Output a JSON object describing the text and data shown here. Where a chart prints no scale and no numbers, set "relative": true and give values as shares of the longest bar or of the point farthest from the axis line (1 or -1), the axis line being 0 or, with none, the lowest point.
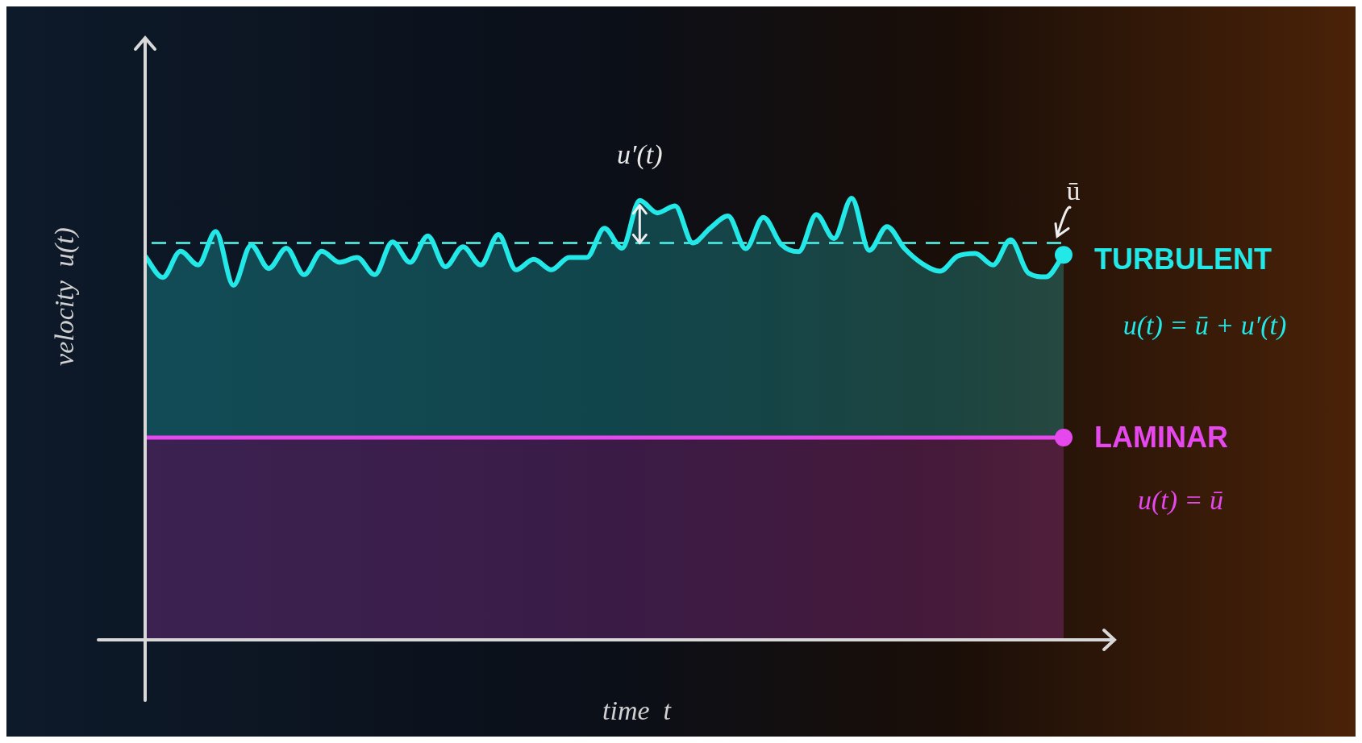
{
  "chart_data": {
    "type": "area",
    "relative": true,
    "xlabel": "time  t",
    "ylabel": "velocity  u(t)",
    "categories": [
      null,
      null,
      null,
      null,
      null,
      null,
      null,
      null,
      null,
      null,
      null,
      null,
      null,
      null,
      null,
      null,
      null,
      null,
      null,
      null,
      null,
      null,
      null,
      null,
      null,
      null,
      null,
      null,
      null,
      null,
      null,
      null,
      null,
      null,
      null,
      null,
      null,
      null,
      null,
      null,
      null,
      null,
      null,
      null,
      null,
      null,
      null,
      null,
      null,
      null,
      null,
      null,
      null
    ],
    "series": [
      {
        "name": "TURBULENT",
        "color": "#22e8e8",
        "values": [
          0.869,
          0.821,
          0.88,
          0.849,
          0.925,
          0.803,
          0.894,
          0.841,
          0.887,
          0.827,
          0.88,
          0.855,
          0.866,
          0.827,
          0.901,
          0.855,
          0.915,
          0.845,
          0.89,
          0.849,
          0.918,
          0.838,
          0.862,
          0.838,
          0.866,
          0.866,
          0.932,
          0.887,
          0.995,
          0.967,
          0.983,
          0.899,
          0.933,
          0.96,
          0.886,
          0.957,
          0.896,
          0.879,
          0.963,
          0.909,
          1.0,
          0.882,
          0.936,
          0.886,
          0.852,
          0.835,
          0.869,
          0.875,
          0.849,
          0.906,
          0.831,
          0.822,
          0.872
        ]
      },
      {
        "name": "LAMINAR",
        "color": "#e548ec",
        "values": [
          0.458,
          0.458,
          0.458,
          0.458,
          0.458,
          0.458,
          0.458,
          0.458,
          0.458,
          0.458,
          0.458,
          0.458,
          0.458,
          0.458,
          0.458,
          0.458,
          0.458,
          0.458,
          0.458,
          0.458,
          0.458,
          0.458,
          0.458,
          0.458,
          0.458,
          0.458,
          0.458,
          0.458,
          0.458,
          0.458,
          0.458,
          0.458,
          0.458,
          0.458,
          0.458,
          0.458,
          0.458,
          0.458,
          0.458,
          0.458,
          0.458,
          0.458,
          0.458,
          0.458,
          0.458,
          0.458,
          0.458,
          0.458,
          0.458,
          0.458,
          0.458,
          0.458,
          0.458
        ]
      }
    ],
    "ref_lines": [
      {
        "axis": "y",
        "value": 0.899,
        "label": "ū",
        "color": "#4fd6cc",
        "line_style": "dashed"
      }
    ],
    "annotations": [
      "u′(t)",
      "u(t) = ū + u′(t)",
      "u(t) = ū"
    ]
  }
}
